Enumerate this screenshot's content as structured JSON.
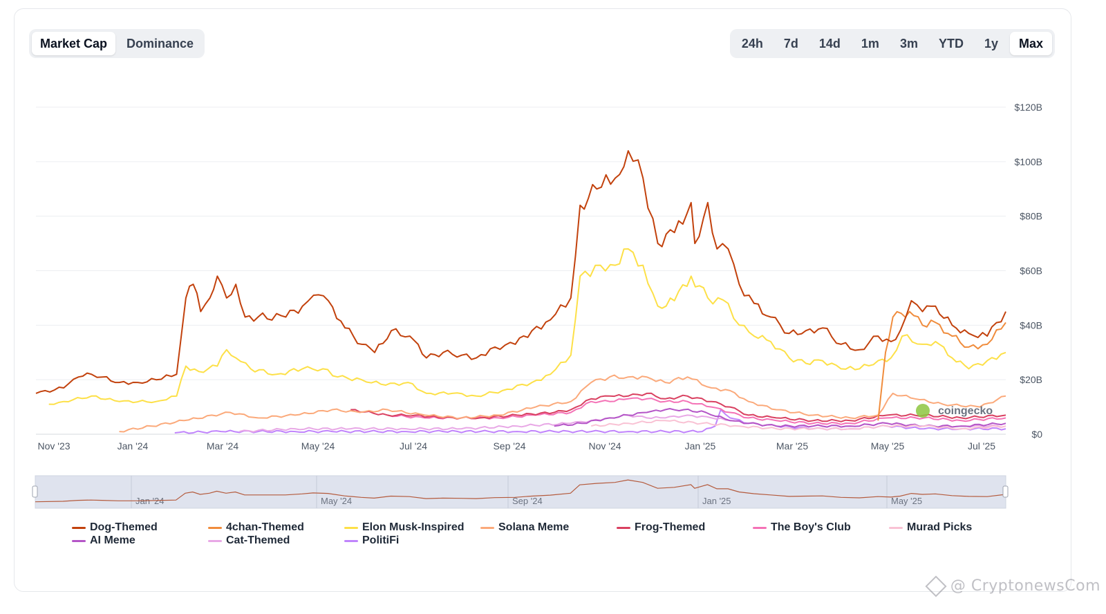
{
  "tabs": [
    {
      "label": "Market Cap",
      "active": true
    },
    {
      "label": "Dominance",
      "active": false
    }
  ],
  "ranges": [
    {
      "label": "24h",
      "active": false
    },
    {
      "label": "7d",
      "active": false
    },
    {
      "label": "14d",
      "active": false
    },
    {
      "label": "1m",
      "active": false
    },
    {
      "label": "3m",
      "active": false
    },
    {
      "label": "YTD",
      "active": false
    },
    {
      "label": "1y",
      "active": false
    },
    {
      "label": "Max",
      "active": true
    }
  ],
  "watermark": "@ CryptonewsCom",
  "chart_watermark": "coingecko",
  "chart_data": {
    "type": "line",
    "y_axis_position": "right",
    "ylim": [
      0,
      120
    ],
    "y_ticks": [
      "$0",
      "$20B",
      "$40B",
      "$60B",
      "$80B",
      "$100B",
      "$120B"
    ],
    "x_ticks": [
      "Nov '23",
      "Jan '24",
      "Mar '24",
      "May '24",
      "Jul '24",
      "Sep '24",
      "Nov '24",
      "Jan '25",
      "Mar '25",
      "May '25",
      "Jul '25"
    ],
    "navigator_ticks": [
      "Jan '24",
      "May '24",
      "Sep '24",
      "Jan '25",
      "May '25"
    ],
    "grid": true,
    "legend_position": "bottom",
    "series": [
      {
        "name": "Dog-Themed",
        "color": "#c2410c",
        "points": [
          [
            0,
            15
          ],
          [
            1.5,
            17
          ],
          [
            2.3,
            21
          ],
          [
            3,
            22
          ],
          [
            3.6,
            21
          ],
          [
            4.5,
            19
          ],
          [
            5.5,
            19
          ],
          [
            6.5,
            20
          ],
          [
            7.6,
            22
          ],
          [
            8.1,
            50
          ],
          [
            8.5,
            55
          ],
          [
            8.9,
            45
          ],
          [
            9.4,
            50
          ],
          [
            9.8,
            58
          ],
          [
            10.3,
            50
          ],
          [
            10.8,
            55
          ],
          [
            11.3,
            43
          ],
          [
            12,
            43
          ],
          [
            13.5,
            43
          ],
          [
            14.4,
            47
          ],
          [
            15,
            51
          ],
          [
            15.8,
            49
          ],
          [
            16.7,
            39
          ],
          [
            17.6,
            33
          ],
          [
            18.3,
            30
          ],
          [
            19.2,
            38
          ],
          [
            20.2,
            36
          ],
          [
            21.1,
            28
          ],
          [
            22,
            30
          ],
          [
            23,
            29
          ],
          [
            23.8,
            28
          ],
          [
            24.8,
            32
          ],
          [
            25.9,
            33
          ],
          [
            26.8,
            38
          ],
          [
            27.8,
            42
          ],
          [
            28.9,
            50
          ],
          [
            29.4,
            84
          ],
          [
            30.3,
            90
          ],
          [
            31.3,
            94
          ],
          [
            32,
            104
          ],
          [
            32.8,
            94
          ],
          [
            33.6,
            70
          ],
          [
            34.5,
            74
          ],
          [
            35.4,
            85
          ],
          [
            35.6,
            70
          ],
          [
            36.3,
            85
          ],
          [
            36.8,
            68
          ],
          [
            37.4,
            68
          ],
          [
            38,
            55
          ],
          [
            38.8,
            48
          ],
          [
            39.7,
            43
          ],
          [
            40.7,
            37
          ],
          [
            41.6,
            38
          ],
          [
            42.5,
            39
          ],
          [
            43.5,
            33
          ],
          [
            44.5,
            31
          ],
          [
            45.5,
            36
          ],
          [
            46.2,
            34
          ],
          [
            46.7,
            38
          ],
          [
            47.3,
            49
          ],
          [
            47.9,
            45
          ],
          [
            48.6,
            47
          ],
          [
            49.5,
            40
          ],
          [
            50.4,
            37
          ],
          [
            51.4,
            36
          ],
          [
            52.4,
            45
          ]
        ]
      },
      {
        "name": "4chan-Themed",
        "color": "#f08c3c",
        "points": [
          [
            45.5,
            5
          ],
          [
            45.9,
            30
          ],
          [
            46.3,
            43
          ],
          [
            47.2,
            45
          ],
          [
            47.9,
            40
          ],
          [
            48.6,
            41
          ],
          [
            49.5,
            36
          ],
          [
            50.4,
            32
          ],
          [
            51.4,
            33
          ],
          [
            52.4,
            41
          ]
        ]
      },
      {
        "name": "Elon Musk-Inspired",
        "color": "#fde047",
        "points": [
          [
            0.7,
            11
          ],
          [
            1.5,
            12
          ],
          [
            3,
            14
          ],
          [
            4.5,
            12
          ],
          [
            6.5,
            12
          ],
          [
            7.6,
            14
          ],
          [
            8.1,
            25
          ],
          [
            8.8,
            23
          ],
          [
            9.8,
            25
          ],
          [
            10.3,
            31
          ],
          [
            10.8,
            28
          ],
          [
            11.6,
            24
          ],
          [
            13,
            22
          ],
          [
            14.4,
            24
          ],
          [
            15.5,
            24
          ],
          [
            16.3,
            21
          ],
          [
            17.6,
            20
          ],
          [
            18.9,
            18
          ],
          [
            20.1,
            19
          ],
          [
            21.1,
            15
          ],
          [
            22.5,
            15
          ],
          [
            23.8,
            14
          ],
          [
            25.2,
            16
          ],
          [
            26.8,
            19
          ],
          [
            27.8,
            22
          ],
          [
            28.9,
            29
          ],
          [
            29.4,
            58
          ],
          [
            30.5,
            62
          ],
          [
            31.3,
            62
          ],
          [
            32,
            68
          ],
          [
            32.8,
            62
          ],
          [
            33.6,
            47
          ],
          [
            34.5,
            49
          ],
          [
            35.4,
            58
          ],
          [
            36.3,
            50
          ],
          [
            37.4,
            48
          ],
          [
            38,
            40
          ],
          [
            38.8,
            36
          ],
          [
            39.7,
            34
          ],
          [
            40.7,
            28
          ],
          [
            41.6,
            26
          ],
          [
            42.5,
            27
          ],
          [
            43.5,
            24
          ],
          [
            44.5,
            24
          ],
          [
            45.5,
            27
          ],
          [
            46.2,
            28
          ],
          [
            46.8,
            36
          ],
          [
            47.9,
            33
          ],
          [
            48.6,
            34
          ],
          [
            49.5,
            28
          ],
          [
            50.4,
            24
          ],
          [
            51.4,
            27
          ],
          [
            52.4,
            30
          ]
        ]
      },
      {
        "name": "Solana Meme",
        "color": "#fba97a",
        "points": [
          [
            4.5,
            1
          ],
          [
            8,
            5
          ],
          [
            10.5,
            8
          ],
          [
            12,
            6
          ],
          [
            14,
            7
          ],
          [
            16,
            9
          ],
          [
            17.5,
            8
          ],
          [
            19,
            9
          ],
          [
            21,
            7
          ],
          [
            23,
            6
          ],
          [
            25,
            7
          ],
          [
            27,
            10
          ],
          [
            28.9,
            12
          ],
          [
            30,
            19
          ],
          [
            31,
            21
          ],
          [
            32,
            21
          ],
          [
            33,
            21
          ],
          [
            34,
            19
          ],
          [
            35.2,
            21
          ],
          [
            36.5,
            17
          ],
          [
            37.5,
            16
          ],
          [
            38.5,
            12
          ],
          [
            40,
            9
          ],
          [
            42,
            7
          ],
          [
            44,
            6
          ],
          [
            45.5,
            7
          ],
          [
            46.3,
            15
          ],
          [
            47.5,
            13
          ],
          [
            49,
            11
          ],
          [
            51,
            10
          ],
          [
            52.4,
            14
          ]
        ]
      },
      {
        "name": "Frog-Themed",
        "color": "#d94060",
        "points": [
          [
            17,
            9
          ],
          [
            19,
            7
          ],
          [
            20.5,
            7
          ],
          [
            22,
            6
          ],
          [
            24,
            6
          ],
          [
            26,
            7
          ],
          [
            28,
            8
          ],
          [
            28.9,
            9
          ],
          [
            30,
            13
          ],
          [
            31,
            14
          ],
          [
            32,
            14
          ],
          [
            33,
            15
          ],
          [
            34,
            13
          ],
          [
            35.2,
            14
          ],
          [
            36.5,
            12
          ],
          [
            37.5,
            10
          ],
          [
            38.5,
            7
          ],
          [
            40,
            6
          ],
          [
            42,
            5
          ],
          [
            44,
            5
          ],
          [
            46,
            7
          ],
          [
            48,
            7
          ],
          [
            50,
            6
          ],
          [
            52.4,
            7
          ]
        ]
      },
      {
        "name": "The Boy's Club",
        "color": "#f472b6",
        "points": [
          [
            19,
            7
          ],
          [
            21,
            6
          ],
          [
            23,
            6
          ],
          [
            25,
            6
          ],
          [
            27,
            7
          ],
          [
            28.9,
            8
          ],
          [
            30,
            12
          ],
          [
            31,
            12
          ],
          [
            32,
            13
          ],
          [
            33,
            13
          ],
          [
            34,
            12
          ],
          [
            35.2,
            12
          ],
          [
            36.5,
            10
          ],
          [
            37.5,
            8
          ],
          [
            38.5,
            6
          ],
          [
            40,
            5
          ],
          [
            42,
            4
          ],
          [
            44,
            4
          ],
          [
            46,
            6
          ],
          [
            48,
            6
          ],
          [
            50,
            5
          ],
          [
            52.4,
            6
          ]
        ]
      },
      {
        "name": "Murad Picks",
        "color": "#f9c2d4",
        "points": [
          [
            30,
            3
          ],
          [
            32,
            4
          ],
          [
            34,
            5
          ],
          [
            36,
            4
          ],
          [
            38,
            3
          ],
          [
            40,
            2
          ],
          [
            42,
            2
          ],
          [
            44,
            2
          ],
          [
            46,
            3
          ],
          [
            48,
            3
          ],
          [
            50,
            2
          ],
          [
            52.4,
            3
          ]
        ]
      },
      {
        "name": "AI Meme",
        "color": "#b455c7",
        "points": [
          [
            28,
            3
          ],
          [
            29.5,
            4
          ],
          [
            31,
            6
          ],
          [
            32,
            7
          ],
          [
            33,
            8
          ],
          [
            34,
            9
          ],
          [
            35,
            9
          ],
          [
            36.2,
            8
          ],
          [
            37.5,
            5
          ],
          [
            38.5,
            4
          ],
          [
            40,
            3
          ],
          [
            42,
            3
          ],
          [
            44,
            3
          ],
          [
            46,
            4
          ],
          [
            48,
            3
          ],
          [
            50,
            3
          ],
          [
            52.4,
            4
          ]
        ]
      },
      {
        "name": "Cat-Themed",
        "color": "#e8a8e6",
        "points": [
          [
            11,
            1
          ],
          [
            14,
            2
          ],
          [
            17,
            2
          ],
          [
            20,
            2
          ],
          [
            23,
            2
          ],
          [
            26,
            3
          ],
          [
            28.9,
            4
          ],
          [
            30,
            5
          ],
          [
            31,
            6
          ],
          [
            32,
            7
          ],
          [
            33,
            6
          ],
          [
            34,
            6
          ],
          [
            35.2,
            7
          ],
          [
            36.5,
            6
          ],
          [
            37.5,
            5
          ],
          [
            38.5,
            4
          ],
          [
            40,
            3
          ],
          [
            42,
            3
          ],
          [
            44,
            3
          ],
          [
            46,
            4
          ],
          [
            48,
            3
          ],
          [
            50,
            3
          ],
          [
            52.4,
            3
          ]
        ]
      },
      {
        "name": "PolitiFi",
        "color": "#c084fc",
        "points": [
          [
            7.5,
            0.5
          ],
          [
            10,
            1
          ],
          [
            12,
            1
          ],
          [
            14,
            1
          ],
          [
            16,
            1
          ],
          [
            18,
            1
          ],
          [
            20,
            1
          ],
          [
            22,
            1
          ],
          [
            24,
            1
          ],
          [
            26,
            1
          ],
          [
            28,
            1
          ],
          [
            30,
            1
          ],
          [
            32,
            1
          ],
          [
            34,
            1
          ],
          [
            36,
            1
          ],
          [
            36.7,
            3
          ],
          [
            37,
            9
          ],
          [
            37.5,
            6
          ],
          [
            38.5,
            4
          ],
          [
            40,
            3
          ],
          [
            42,
            2
          ],
          [
            44,
            2
          ],
          [
            46,
            3
          ],
          [
            48,
            2
          ],
          [
            50,
            2
          ],
          [
            52.4,
            2
          ]
        ]
      }
    ]
  }
}
